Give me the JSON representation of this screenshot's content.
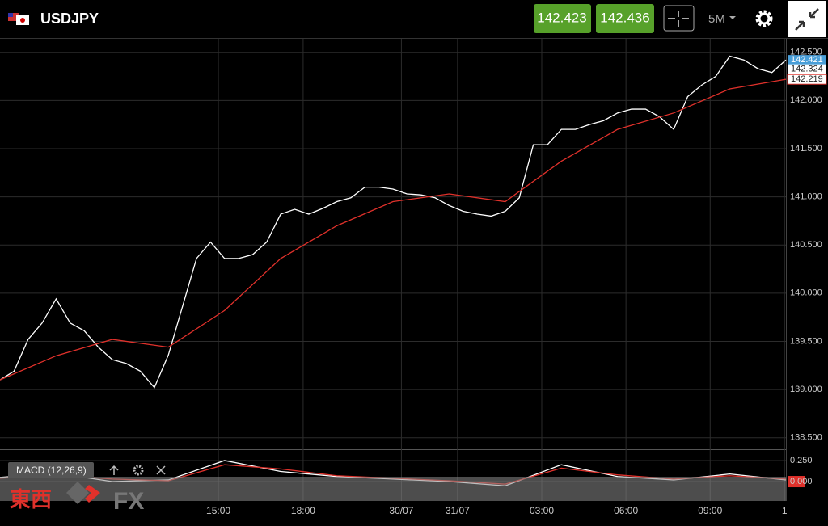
{
  "header": {
    "symbol": "USDJPY",
    "bid": "142.423",
    "ask": "142.436",
    "timeframe": "5M"
  },
  "chart_data": {
    "type": "line",
    "xlim": [
      0,
      28
    ],
    "ylim": [
      138.38,
      142.64
    ],
    "yticks": [
      {
        "value": 138.5,
        "label": "138.500"
      },
      {
        "value": 139,
        "label": "139.000"
      },
      {
        "value": 139.5,
        "label": "139.500"
      },
      {
        "value": 140,
        "label": "140.000"
      },
      {
        "value": 140.5,
        "label": "140.500"
      },
      {
        "value": 141,
        "label": "141.000"
      },
      {
        "value": 141.5,
        "label": "141.500"
      },
      {
        "value": 142,
        "label": "142.000"
      },
      {
        "value": 142.5,
        "label": "142.500"
      }
    ],
    "xticks": [
      {
        "value": 7.78,
        "label": "15:00"
      },
      {
        "value": 10.8,
        "label": "18:00"
      },
      {
        "value": 14.3,
        "label": "30/07"
      },
      {
        "value": 16.3,
        "label": "31/07"
      },
      {
        "value": 19.3,
        "label": "03:00"
      },
      {
        "value": 22.3,
        "label": "06:00"
      },
      {
        "value": 25.3,
        "label": "09:00"
      },
      {
        "value": 27.95,
        "label": "1"
      }
    ],
    "grid": true,
    "series": [
      {
        "color": "#ffffff",
        "x": [
          0,
          0.5,
          1,
          1.5,
          2,
          2.5,
          3,
          3.5,
          4,
          4.5,
          5,
          5.5,
          6,
          6.5,
          7,
          7.5,
          8,
          8.5,
          9,
          9.5,
          10,
          10.5,
          11,
          11.5,
          12,
          12.5,
          13,
          13.5,
          14,
          14.5,
          15,
          15.5,
          16,
          16.5,
          17,
          17.5,
          18,
          18.5,
          19,
          19.5,
          20,
          20.5,
          21,
          21.5,
          22,
          22.5,
          23,
          23.5,
          24,
          24.5,
          25,
          25.5,
          26,
          26.5,
          27,
          27.5,
          28
        ],
        "values": [
          139.1,
          139.19,
          139.52,
          139.69,
          139.94,
          139.69,
          139.61,
          139.44,
          139.31,
          139.27,
          139.19,
          139.02,
          139.36,
          139.86,
          140.36,
          140.53,
          140.36,
          140.36,
          140.4,
          140.53,
          140.82,
          140.87,
          140.82,
          140.88,
          140.95,
          140.99,
          141.1,
          141.1,
          141.08,
          141.03,
          141.02,
          140.99,
          140.91,
          140.85,
          140.82,
          140.8,
          140.85,
          140.99,
          141.54,
          141.54,
          141.7,
          141.7,
          141.75,
          141.79,
          141.87,
          141.91,
          141.91,
          141.83,
          141.7,
          142.04,
          142.16,
          142.25,
          142.46,
          142.42,
          142.33,
          142.29,
          142.42
        ]
      },
      {
        "color": "#e0312b",
        "x": [
          0,
          2,
          4,
          6,
          8,
          10,
          12,
          14,
          16,
          18,
          20,
          22,
          24,
          26,
          28
        ],
        "values": [
          139.1,
          139.35,
          139.52,
          139.44,
          139.82,
          140.36,
          140.7,
          140.95,
          141.03,
          140.95,
          141.37,
          141.7,
          141.87,
          142.12,
          142.22
        ]
      }
    ],
    "price_labels": [
      142.421,
      142.324,
      142.219
    ],
    "macd": {
      "label": "MACD (12,26,9)",
      "ylim": [
        -0.23,
        0.365
      ],
      "yticks": [
        {
          "value": 0.25,
          "label": "0.250"
        },
        {
          "value": 0,
          "label": "0.000"
        }
      ],
      "x": [
        0,
        2,
        4,
        6,
        8,
        10,
        12,
        14,
        16,
        18,
        20,
        22,
        24,
        26,
        28
      ],
      "series": [
        {
          "color": "#ffffff",
          "values": [
            0.05,
            0.1,
            0,
            0.02,
            0.25,
            0.12,
            0.06,
            0.03,
            0,
            -0.05,
            0.2,
            0.06,
            0.02,
            0.09,
            0.02
          ]
        },
        {
          "color": "#e0312b",
          "values": [
            0.04,
            0.08,
            0.03,
            0.01,
            0.2,
            0.15,
            0.07,
            0.04,
            0.01,
            -0.03,
            0.16,
            0.08,
            0.03,
            0.07,
            0.03
          ]
        }
      ]
    },
    "watermark": {
      "kanji": "東西",
      "fx": "FX"
    }
  }
}
